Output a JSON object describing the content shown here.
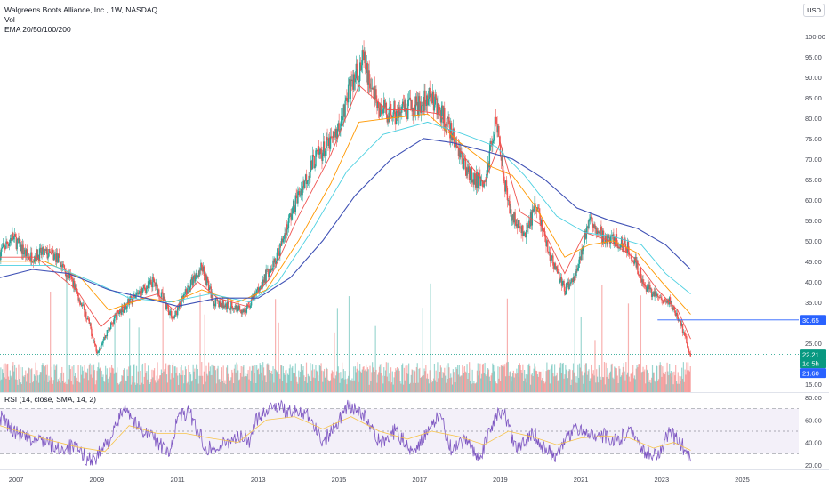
{
  "legend": {
    "symbol": "Walgreens Boots Alliance, Inc., 1W, NASDAQ",
    "volume": "Vol",
    "ema": "EMA 20/50/100/200"
  },
  "currency": "USD",
  "rsi_legend": "RSI (14, close, SMA, 14, 2)",
  "colors": {
    "up": "#26a69a",
    "down": "#ef5350",
    "ema20": "#ef5350",
    "ema50": "#ff9800",
    "ema100": "#4dd0e1",
    "ema200": "#3f51b5",
    "rsi": "#7e57c2",
    "rsi_sma": "#f7c44b",
    "support_line": "#2962ff",
    "price_label_bg": "#089981"
  },
  "chart_data": [
    {
      "type": "candlestick",
      "title": "Walgreens Boots Alliance, Inc., 1W, NASDAQ",
      "x_ticks": [
        "2007",
        "2009",
        "2011",
        "2013",
        "2015",
        "2017",
        "2019",
        "2021",
        "2023",
        "2025"
      ],
      "y_ticks": [
        15.0,
        20.0,
        25.0,
        30.0,
        35.0,
        40.0,
        45.0,
        50.0,
        55.0,
        60.0,
        65.0,
        70.0,
        75.0,
        80.0,
        85.0,
        90.0,
        95.0,
        100.0
      ],
      "ylim": [
        13.0,
        103.0
      ],
      "xlim": [
        2006.6,
        2026.4
      ],
      "close_path": [
        [
          2006.6,
          47
        ],
        [
          2006.9,
          51
        ],
        [
          2007.3,
          46
        ],
        [
          2007.7,
          47
        ],
        [
          2008.0,
          46
        ],
        [
          2008.4,
          40
        ],
        [
          2008.8,
          30
        ],
        [
          2009.0,
          23
        ],
        [
          2009.5,
          32
        ],
        [
          2009.9,
          36
        ],
        [
          2010.4,
          40
        ],
        [
          2010.9,
          31
        ],
        [
          2011.3,
          39
        ],
        [
          2011.6,
          44
        ],
        [
          2011.9,
          35
        ],
        [
          2012.3,
          34
        ],
        [
          2012.7,
          33
        ],
        [
          2013.0,
          38
        ],
        [
          2013.5,
          47
        ],
        [
          2013.9,
          59
        ],
        [
          2014.4,
          70
        ],
        [
          2014.9,
          75
        ],
        [
          2015.3,
          88
        ],
        [
          2015.6,
          94
        ],
        [
          2016.0,
          82
        ],
        [
          2016.5,
          81
        ],
        [
          2016.9,
          83
        ],
        [
          2017.3,
          85
        ],
        [
          2017.7,
          78
        ],
        [
          2018.2,
          67
        ],
        [
          2018.6,
          63
        ],
        [
          2018.9,
          81
        ],
        [
          2019.2,
          58
        ],
        [
          2019.6,
          51
        ],
        [
          2019.9,
          59
        ],
        [
          2020.2,
          47
        ],
        [
          2020.6,
          38
        ],
        [
          2020.9,
          42
        ],
        [
          2021.2,
          56
        ],
        [
          2021.6,
          50
        ],
        [
          2021.9,
          50
        ],
        [
          2022.2,
          48
        ],
        [
          2022.6,
          39
        ],
        [
          2022.9,
          36
        ],
        [
          2023.2,
          35
        ],
        [
          2023.5,
          29
        ],
        [
          2023.72,
          22.21
        ]
      ],
      "series": [
        {
          "name": "EMA 20",
          "points": [
            [
              2006.6,
              46
            ],
            [
              2007.5,
              46
            ],
            [
              2008.5,
              38
            ],
            [
              2009.1,
              29
            ],
            [
              2009.8,
              35
            ],
            [
              2010.5,
              37
            ],
            [
              2010.9,
              33
            ],
            [
              2011.5,
              40
            ],
            [
              2012.0,
              36
            ],
            [
              2012.7,
              34
            ],
            [
              2013.3,
              41
            ],
            [
              2014.0,
              56
            ],
            [
              2014.8,
              71
            ],
            [
              2015.5,
              88
            ],
            [
              2016.2,
              82
            ],
            [
              2016.8,
              82
            ],
            [
              2017.5,
              81
            ],
            [
              2018.0,
              72
            ],
            [
              2018.6,
              64
            ],
            [
              2019.0,
              74
            ],
            [
              2019.5,
              57
            ],
            [
              2020.0,
              54
            ],
            [
              2020.6,
              42
            ],
            [
              2021.1,
              52
            ],
            [
              2021.7,
              50
            ],
            [
              2022.3,
              46
            ],
            [
              2022.9,
              38
            ],
            [
              2023.4,
              33
            ],
            [
              2023.72,
              26
            ]
          ]
        },
        {
          "name": "EMA 50",
          "points": [
            [
              2006.6,
              45
            ],
            [
              2007.7,
              45
            ],
            [
              2008.6,
              41
            ],
            [
              2009.3,
              33
            ],
            [
              2010.2,
              36
            ],
            [
              2010.9,
              35
            ],
            [
              2011.6,
              38
            ],
            [
              2012.5,
              35
            ],
            [
              2013.2,
              38
            ],
            [
              2014.0,
              50
            ],
            [
              2014.8,
              64
            ],
            [
              2015.5,
              79
            ],
            [
              2016.3,
              80
            ],
            [
              2017.2,
              81
            ],
            [
              2018.0,
              74
            ],
            [
              2018.8,
              68
            ],
            [
              2019.3,
              66
            ],
            [
              2019.9,
              58
            ],
            [
              2020.6,
              46
            ],
            [
              2021.2,
              49
            ],
            [
              2021.8,
              50
            ],
            [
              2022.4,
              47
            ],
            [
              2023.0,
              40
            ],
            [
              2023.72,
              32
            ]
          ]
        },
        {
          "name": "EMA 100",
          "points": [
            [
              2006.6,
              44
            ],
            [
              2007.9,
              44
            ],
            [
              2008.9,
              40
            ],
            [
              2009.8,
              36
            ],
            [
              2010.8,
              35
            ],
            [
              2011.8,
              37
            ],
            [
              2012.8,
              35
            ],
            [
              2013.5,
              40
            ],
            [
              2014.3,
              52
            ],
            [
              2015.2,
              67
            ],
            [
              2016.1,
              76
            ],
            [
              2017.2,
              79
            ],
            [
              2018.1,
              76
            ],
            [
              2018.9,
              73
            ],
            [
              2019.6,
              66
            ],
            [
              2020.4,
              56
            ],
            [
              2021.1,
              52
            ],
            [
              2021.8,
              51
            ],
            [
              2022.5,
              49
            ],
            [
              2023.1,
              42
            ],
            [
              2023.72,
              37
            ]
          ]
        },
        {
          "name": "EMA 200",
          "points": [
            [
              2006.6,
              41
            ],
            [
              2007.4,
              43
            ],
            [
              2008.3,
              42
            ],
            [
              2009.3,
              38
            ],
            [
              2010.2,
              36
            ],
            [
              2011.0,
              34
            ],
            [
              2012.0,
              36
            ],
            [
              2013.0,
              36
            ],
            [
              2013.8,
              41
            ],
            [
              2014.6,
              50
            ],
            [
              2015.4,
              61
            ],
            [
              2016.3,
              70
            ],
            [
              2017.1,
              75
            ],
            [
              2017.8,
              74
            ],
            [
              2018.6,
              72
            ],
            [
              2019.3,
              70
            ],
            [
              2020.1,
              65
            ],
            [
              2020.9,
              58
            ],
            [
              2021.7,
              55
            ],
            [
              2022.4,
              53
            ],
            [
              2023.1,
              49
            ],
            [
              2023.72,
              43
            ]
          ]
        }
      ],
      "levels": [
        30.65,
        21.6
      ],
      "price_labels": [
        {
          "value": 30.65,
          "text": "30.65"
        },
        {
          "value": 22.21,
          "text": "22.21"
        },
        {
          "text": "1d 5h"
        },
        {
          "value": 21.6,
          "text": "21.60"
        }
      ]
    },
    {
      "type": "line",
      "title": "RSI (14, close, SMA, 14, 2)",
      "ylim": [
        16,
        84
      ],
      "y_ticks": [
        20.0,
        40.0,
        60.0,
        80.0
      ],
      "bands": [
        30,
        50,
        70
      ],
      "series": [
        {
          "name": "RSI",
          "points": [
            [
              2006.6,
              63
            ],
            [
              2007.0,
              48
            ],
            [
              2007.4,
              41
            ],
            [
              2007.7,
              43
            ],
            [
              2008.0,
              34
            ],
            [
              2008.4,
              36
            ],
            [
              2008.8,
              25
            ],
            [
              2009.0,
              27
            ],
            [
              2009.4,
              47
            ],
            [
              2009.7,
              74
            ],
            [
              2010.0,
              54
            ],
            [
              2010.4,
              45
            ],
            [
              2010.8,
              28
            ],
            [
              2011.0,
              63
            ],
            [
              2011.3,
              66
            ],
            [
              2011.7,
              36
            ],
            [
              2012.0,
              34
            ],
            [
              2012.4,
              45
            ],
            [
              2012.8,
              42
            ],
            [
              2013.0,
              64
            ],
            [
              2013.4,
              74
            ],
            [
              2013.8,
              66
            ],
            [
              2014.2,
              68
            ],
            [
              2014.6,
              41
            ],
            [
              2014.9,
              54
            ],
            [
              2015.2,
              73
            ],
            [
              2015.6,
              65
            ],
            [
              2016.0,
              40
            ],
            [
              2016.4,
              50
            ],
            [
              2016.8,
              33
            ],
            [
              2017.2,
              47
            ],
            [
              2017.5,
              66
            ],
            [
              2017.8,
              32
            ],
            [
              2018.2,
              42
            ],
            [
              2018.5,
              25
            ],
            [
              2018.9,
              66
            ],
            [
              2019.1,
              66
            ],
            [
              2019.4,
              32
            ],
            [
              2019.8,
              50
            ],
            [
              2020.1,
              35
            ],
            [
              2020.4,
              28
            ],
            [
              2020.8,
              52
            ],
            [
              2021.1,
              50
            ],
            [
              2021.5,
              47
            ],
            [
              2021.9,
              41
            ],
            [
              2022.2,
              52
            ],
            [
              2022.6,
              32
            ],
            [
              2022.9,
              28
            ],
            [
              2023.2,
              49
            ],
            [
              2023.5,
              38
            ],
            [
              2023.72,
              23
            ]
          ]
        },
        {
          "name": "RSI SMA",
          "points": [
            [
              2006.6,
              55
            ],
            [
              2007.5,
              45
            ],
            [
              2008.5,
              36
            ],
            [
              2009.2,
              32
            ],
            [
              2009.8,
              55
            ],
            [
              2010.5,
              48
            ],
            [
              2011.2,
              48
            ],
            [
              2011.8,
              44
            ],
            [
              2012.5,
              40
            ],
            [
              2013.2,
              60
            ],
            [
              2013.9,
              63
            ],
            [
              2014.6,
              52
            ],
            [
              2015.3,
              63
            ],
            [
              2016.0,
              50
            ],
            [
              2016.7,
              43
            ],
            [
              2017.3,
              50
            ],
            [
              2018.0,
              45
            ],
            [
              2018.6,
              38
            ],
            [
              2019.2,
              50
            ],
            [
              2019.8,
              45
            ],
            [
              2020.4,
              38
            ],
            [
              2021.0,
              44
            ],
            [
              2021.6,
              46
            ],
            [
              2022.2,
              44
            ],
            [
              2022.8,
              35
            ],
            [
              2023.3,
              40
            ],
            [
              2023.72,
              33
            ]
          ]
        }
      ]
    }
  ]
}
